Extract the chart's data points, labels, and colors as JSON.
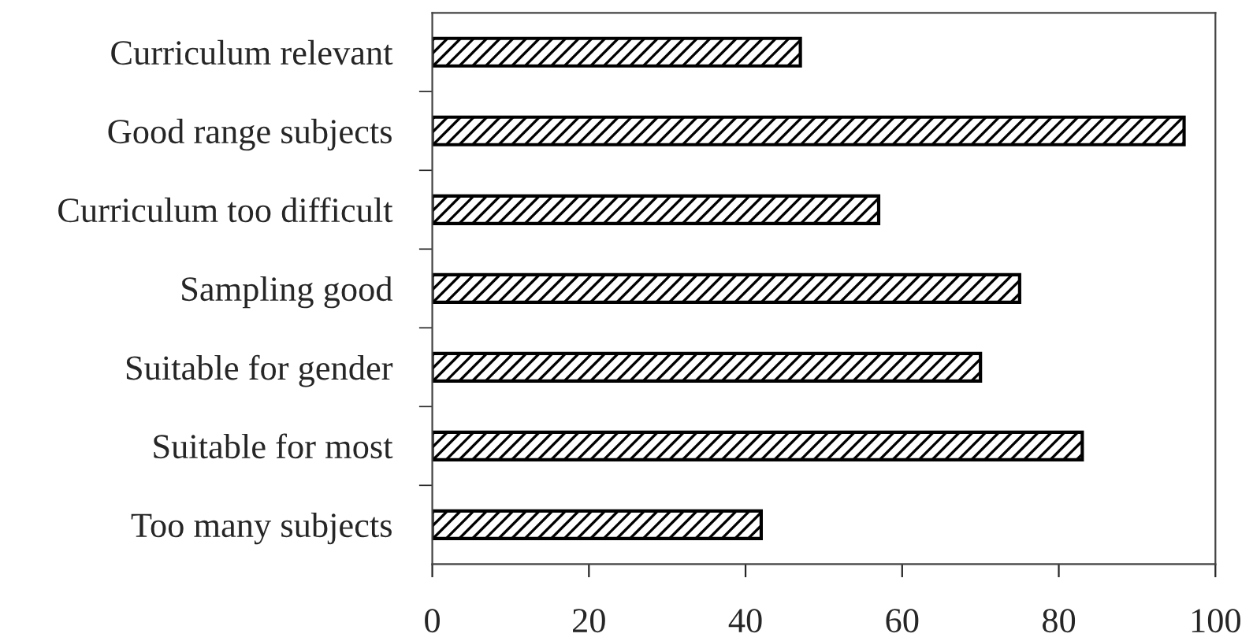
{
  "chart_data": {
    "type": "bar",
    "orientation": "horizontal",
    "categories": [
      "Curriculum relevant",
      "Good range subjects",
      "Curriculum too difficult",
      "Sampling good",
      "Suitable for gender",
      "Suitable for most",
      "Too many subjects"
    ],
    "values": [
      47,
      96,
      57,
      75,
      70,
      83,
      42
    ],
    "color": "#000000",
    "xlim": [
      0,
      100
    ],
    "xticks": [
      0,
      20,
      40,
      60,
      80,
      100
    ],
    "grid": false,
    "legend": false
  }
}
